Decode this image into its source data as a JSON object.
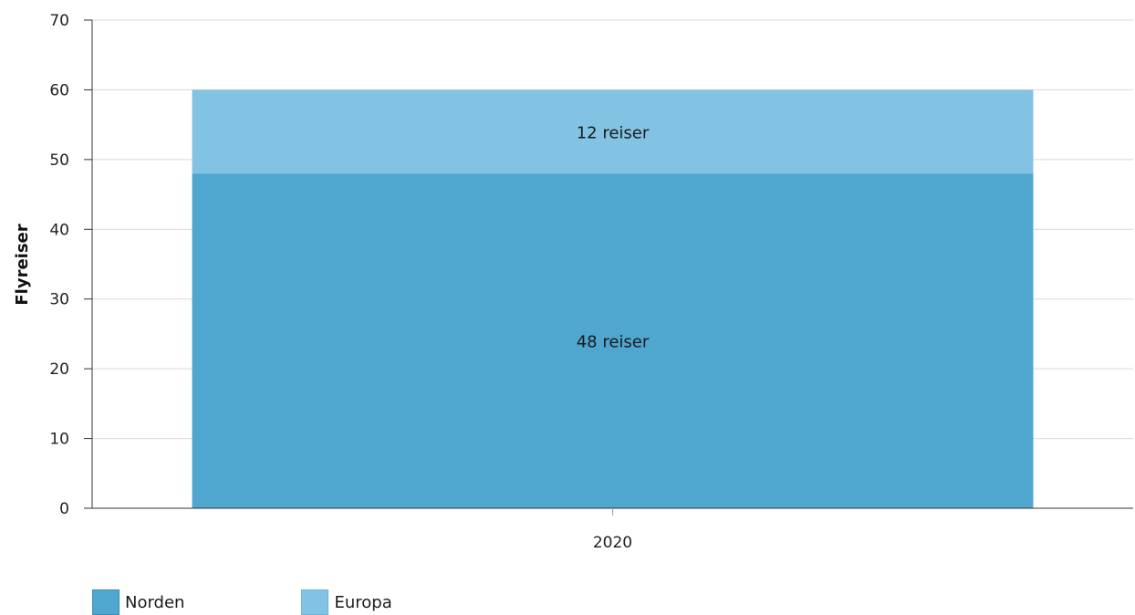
{
  "chart_data": {
    "type": "bar",
    "stacked": true,
    "categories": [
      "2020"
    ],
    "series": [
      {
        "name": "Norden",
        "values": [
          48
        ],
        "label": "48 reiser",
        "color": "#4fa6cf"
      },
      {
        "name": "Europa",
        "values": [
          12
        ],
        "label": "12 reiser",
        "color": "#82c3e3"
      }
    ],
    "xlabel": "",
    "ylabel": "Flyreiser",
    "ylim": [
      0,
      70
    ],
    "yticks": [
      0,
      10,
      20,
      30,
      40,
      50,
      60,
      70
    ],
    "grid": true,
    "legend_position": "bottom-left"
  }
}
